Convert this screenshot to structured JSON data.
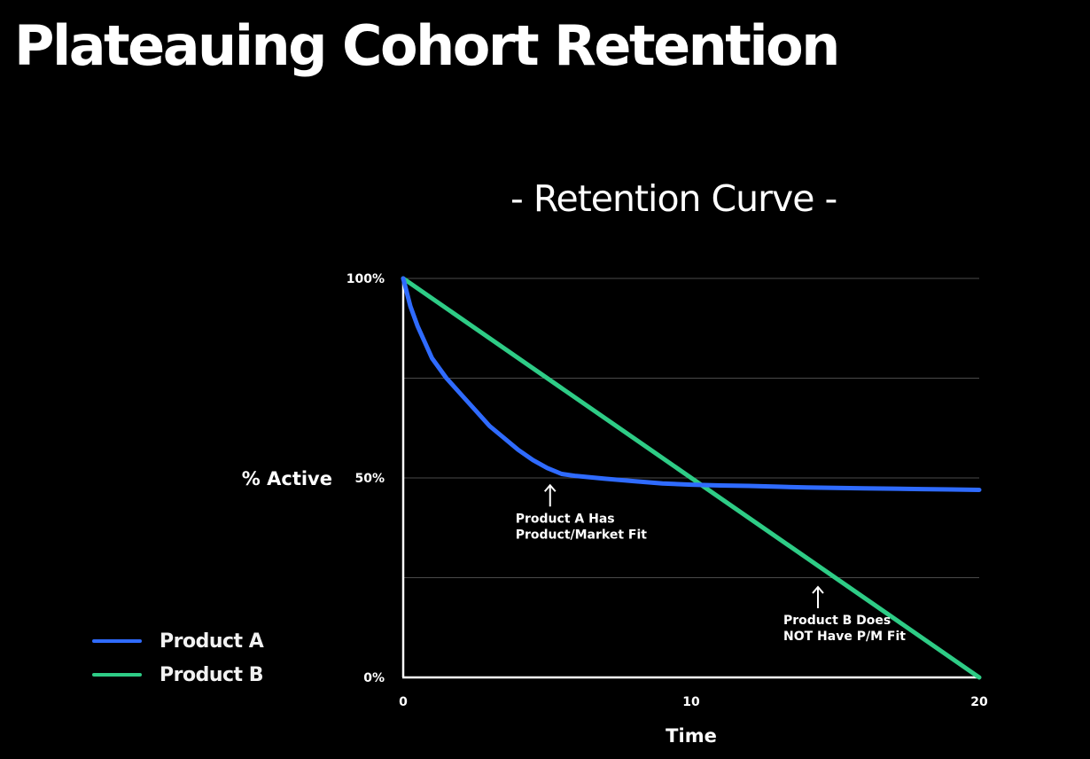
{
  "slide": {
    "title": "Plateauing Cohort Retention"
  },
  "chart_data": {
    "type": "line",
    "title": "- Retention Curve -",
    "xlabel": "Time",
    "ylabel": "% Active",
    "xlim": [
      0,
      20
    ],
    "ylim": [
      0,
      100
    ],
    "x_ticks": [
      {
        "value": 0,
        "label": "0"
      },
      {
        "value": 10,
        "label": "10"
      },
      {
        "value": 20,
        "label": "20"
      }
    ],
    "y_ticks": [
      {
        "value": 0,
        "label": "0%"
      },
      {
        "value": 50,
        "label": "50%"
      },
      {
        "value": 100,
        "label": "100%"
      }
    ],
    "gridlines_y": [
      25,
      50,
      75,
      100
    ],
    "grid": true,
    "legend_position": "bottom-left",
    "series": [
      {
        "name": "Product A",
        "color": "#2f6bff",
        "x": [
          0,
          0.25,
          0.5,
          0.75,
          1,
          1.5,
          2,
          2.5,
          3,
          3.5,
          4,
          4.5,
          5,
          5.5,
          6,
          7,
          8,
          9,
          10,
          11,
          12,
          13,
          14,
          15,
          16,
          17,
          18,
          19,
          20
        ],
        "y": [
          100,
          93,
          88,
          84,
          80,
          75,
          71,
          67,
          63,
          60,
          57,
          54.5,
          52.5,
          51,
          50.5,
          49.8,
          49.2,
          48.6,
          48.3,
          48.1,
          48,
          47.8,
          47.6,
          47.5,
          47.4,
          47.3,
          47.2,
          47.1,
          47
        ]
      },
      {
        "name": "Product B",
        "color": "#2ecc86",
        "x": [
          0,
          20
        ],
        "y": [
          100,
          0
        ]
      }
    ],
    "annotations": [
      {
        "lines": [
          "Product A Has",
          "Product/Market Fit"
        ],
        "x": 5.1,
        "y": 49.5,
        "arrow": true
      },
      {
        "lines": [
          "Product B Does",
          "NOT Have P/M Fit"
        ],
        "x": 14.4,
        "y": 24,
        "arrow": true
      }
    ]
  }
}
